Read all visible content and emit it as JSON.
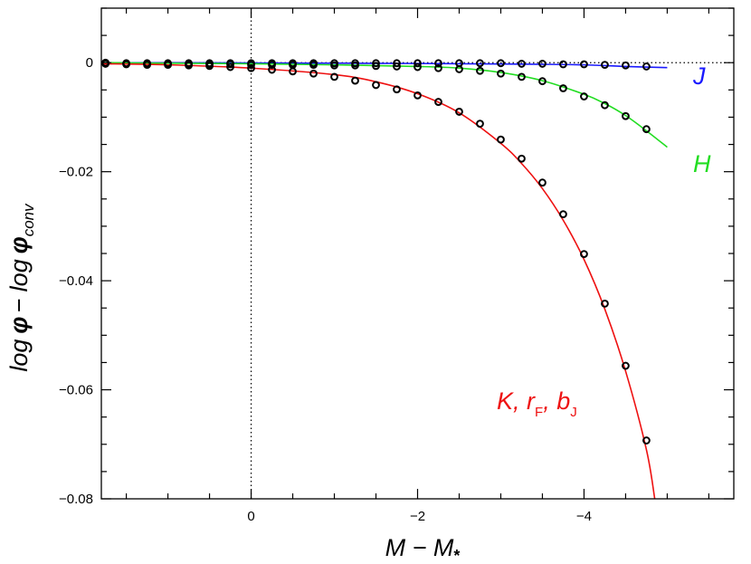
{
  "chart_data": {
    "type": "line",
    "xlabel": {
      "main": "M − M",
      "sub": "*"
    },
    "ylabel": {
      "part1": "log",
      "phi1": "φ",
      "mid": "−  log",
      "phi2": "φ",
      "sub": "conv"
    },
    "xlim": [
      1.8,
      -5.8
    ],
    "ylim": [
      -0.08,
      0.01
    ],
    "x_ticks": [
      {
        "value": 0,
        "label": "0"
      },
      {
        "value": -2,
        "label": "−2"
      },
      {
        "value": -4,
        "label": "−4"
      }
    ],
    "y_ticks": [
      {
        "value": 0,
        "label": "0"
      },
      {
        "value": -0.02,
        "label": "−0.02"
      },
      {
        "value": -0.04,
        "label": "−0.04"
      },
      {
        "value": -0.06,
        "label": "−0.06"
      },
      {
        "value": -0.08,
        "label": "−0.08"
      }
    ],
    "reference_lines": [
      {
        "orientation": "vertical",
        "value": 0,
        "style": "dotted"
      },
      {
        "orientation": "horizontal",
        "value": 0,
        "style": "dotted"
      }
    ],
    "series": [
      {
        "key": "J",
        "color": "#1a1aff",
        "label": {
          "main": "J",
          "sub": ""
        },
        "curve": {
          "x": [
            1.8,
            1.0,
            0.0,
            -1.0,
            -2.0,
            -3.0,
            -3.5,
            -4.0,
            -4.5,
            -5.0
          ],
          "y": [
            0.0,
            -2e-05,
            -5e-05,
            -0.0001,
            -0.00015,
            -0.00025,
            -0.0003,
            -0.0004,
            -0.0007,
            -0.0009
          ]
        },
        "points": {
          "x": [
            1.75,
            1.5,
            1.25,
            1.0,
            0.75,
            0.5,
            0.25,
            0.0,
            -0.25,
            -0.5,
            -0.75,
            -1.0,
            -1.25,
            -1.5,
            -1.75,
            -2.0,
            -2.25,
            -2.5,
            -2.75,
            -3.0,
            -3.25,
            -3.5,
            -3.75,
            -4.0,
            -4.25,
            -4.5,
            -4.75
          ],
          "y": [
            0.0,
            -0.0001,
            -0.0001,
            -0.0001,
            -0.0001,
            -0.0001,
            -0.0001,
            -0.0001,
            -0.0001,
            -0.0001,
            -0.0001,
            -0.0001,
            -0.0001,
            -0.0001,
            -0.0001,
            -0.0001,
            -0.0001,
            -0.0001,
            -0.0001,
            -0.0001,
            -0.0002,
            -0.0002,
            -0.0003,
            -0.0003,
            -0.0004,
            -0.0005,
            -0.0007
          ]
        }
      },
      {
        "key": "H",
        "color": "#22dd22",
        "label": {
          "main": "H",
          "sub": ""
        },
        "curve": {
          "x": [
            1.8,
            1.0,
            0.0,
            -1.0,
            -2.0,
            -2.5,
            -3.0,
            -3.5,
            -4.0,
            -4.25,
            -4.5,
            -4.75,
            -5.0
          ],
          "y": [
            0.0,
            -0.0001,
            -0.0002,
            -0.0004,
            -0.0007,
            -0.001,
            -0.0018,
            -0.0033,
            -0.0058,
            -0.0075,
            -0.0097,
            -0.0125,
            -0.0155
          ]
        },
        "points": {
          "x": [
            1.75,
            1.5,
            1.25,
            1.0,
            0.75,
            0.5,
            0.25,
            0.0,
            -0.25,
            -0.5,
            -0.75,
            -1.0,
            -1.25,
            -1.5,
            -1.75,
            -2.0,
            -2.25,
            -2.5,
            -2.75,
            -3.0,
            -3.25,
            -3.5,
            -3.75,
            -4.0,
            -4.25,
            -4.5,
            -4.75
          ],
          "y": [
            -0.0001,
            -0.0002,
            -0.0002,
            -0.0002,
            -0.0003,
            -0.0003,
            -0.0003,
            -0.0004,
            -0.0004,
            -0.0004,
            -0.0004,
            -0.0005,
            -0.0005,
            -0.0006,
            -0.0007,
            -0.0008,
            -0.001,
            -0.0012,
            -0.0015,
            -0.002,
            -0.0026,
            -0.0034,
            -0.0047,
            -0.0062,
            -0.0078,
            -0.0098,
            -0.0122
          ]
        }
      },
      {
        "key": "K",
        "color": "#ee1111",
        "label": {
          "main": "K,  r",
          "sub": "F",
          "mid": ",  b",
          "sub2": "J"
        },
        "curve": {
          "x": [
            1.8,
            1.0,
            0.0,
            -1.0,
            -1.5,
            -2.0,
            -2.5,
            -3.0,
            -3.25,
            -3.5,
            -3.75,
            -4.0,
            -4.25,
            -4.5,
            -4.75,
            -4.85
          ],
          "y": [
            -0.0002,
            -0.0004,
            -0.001,
            -0.0022,
            -0.0035,
            -0.0057,
            -0.0092,
            -0.0148,
            -0.0185,
            -0.0231,
            -0.0289,
            -0.0361,
            -0.0452,
            -0.0566,
            -0.071,
            -0.08
          ]
        },
        "points": {
          "x": [
            1.75,
            1.5,
            1.25,
            1.0,
            0.75,
            0.5,
            0.25,
            0.0,
            -0.25,
            -0.5,
            -0.75,
            -1.0,
            -1.25,
            -1.5,
            -1.75,
            -2.0,
            -2.25,
            -2.5,
            -2.75,
            -3.0,
            -3.25,
            -3.5,
            -3.75,
            -4.0,
            -4.25,
            -4.5,
            -4.75
          ],
          "y": [
            -0.0002,
            -0.0003,
            -0.0004,
            -0.0004,
            -0.0005,
            -0.0006,
            -0.0008,
            -0.001,
            -0.0013,
            -0.0016,
            -0.002,
            -0.0026,
            -0.0033,
            -0.0041,
            -0.0049,
            -0.006,
            -0.0072,
            -0.009,
            -0.0112,
            -0.0141,
            -0.0176,
            -0.022,
            -0.0278,
            -0.0351,
            -0.0442,
            -0.0556,
            -0.0693
          ]
        }
      }
    ]
  }
}
